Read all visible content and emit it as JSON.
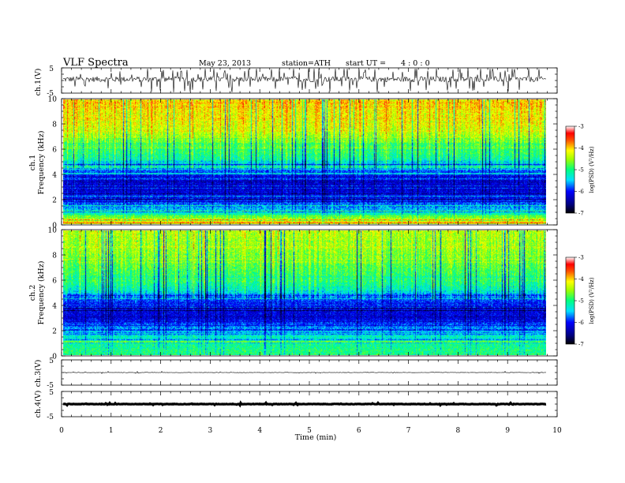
{
  "header": {
    "title": "VLF  Spectra",
    "date": "May 23, 2013",
    "station": "station=ATH",
    "start_prefix": "start  UT  =",
    "start_time": "4  : 0  : 0"
  },
  "axes": {
    "ch1_wave_label": "ch.1(V)",
    "ch1_spec_label": "ch.1\nFrequency  (kHz)",
    "ch2_spec_label": "ch.2\nFrequency  (kHz)",
    "ch3_wave_label": "ch.3(V)",
    "ch4_wave_label": "ch.4(V)",
    "time_label": "Time  (min)",
    "colorbar_label": "log(PSD) (V²/Hz)"
  },
  "chart_data": [
    {
      "type": "line",
      "panel": "ch.1 waveform",
      "ylabel": "ch.1(V)",
      "ylim": [
        -5,
        5
      ],
      "yticks": [
        "5",
        "-5"
      ],
      "xlim": [
        0,
        10
      ],
      "description_values": {
        "baseline_V": 0.5,
        "spike_amplitude_V": 3.5
      }
    },
    {
      "type": "heatmap",
      "panel": "ch.1 spectrogram",
      "ylabel": "Frequency (kHz)",
      "ylim": [
        0,
        10
      ],
      "yticks": [
        "0",
        "2",
        "4",
        "6",
        "8",
        "10"
      ],
      "xlim": [
        0,
        9.8
      ],
      "color_scale": {
        "label": "log(PSD) (V²/Hz)",
        "min": -7,
        "max": -3,
        "ticks": [
          "-3",
          "-4",
          "-5",
          "-6",
          "-7"
        ]
      },
      "log_psd_profile": [
        {
          "freq_khz": 0.2,
          "value": -4.0
        },
        {
          "freq_khz": 1.0,
          "value": -5.4
        },
        {
          "freq_khz": 2.0,
          "value": -6.0
        },
        {
          "freq_khz": 3.0,
          "value": -6.3
        },
        {
          "freq_khz": 4.0,
          "value": -6.0
        },
        {
          "freq_khz": 4.6,
          "value": -5.6
        },
        {
          "freq_khz": 5.5,
          "value": -5.0
        },
        {
          "freq_khz": 6.5,
          "value": -4.7
        },
        {
          "freq_khz": 8.0,
          "value": -4.2
        },
        {
          "freq_khz": 10.0,
          "value": -4.0
        }
      ]
    },
    {
      "type": "heatmap",
      "panel": "ch.2 spectrogram",
      "ylabel": "Frequency (kHz)",
      "ylim": [
        0,
        10
      ],
      "yticks": [
        "0",
        "2",
        "4",
        "6",
        "8",
        "10"
      ],
      "xlim": [
        0,
        9.8
      ],
      "color_scale": {
        "label": "log(PSD) (V²/Hz)",
        "min": -7,
        "max": -3,
        "ticks": [
          "-3",
          "-4",
          "-5",
          "-6",
          "-7"
        ]
      },
      "log_psd_profile": [
        {
          "freq_khz": 0.2,
          "value": -5.0
        },
        {
          "freq_khz": 1.0,
          "value": -5.1
        },
        {
          "freq_khz": 2.0,
          "value": -5.5
        },
        {
          "freq_khz": 3.0,
          "value": -6.2
        },
        {
          "freq_khz": 4.0,
          "value": -6.1
        },
        {
          "freq_khz": 4.6,
          "value": -5.8
        },
        {
          "freq_khz": 5.5,
          "value": -5.1
        },
        {
          "freq_khz": 6.5,
          "value": -4.9
        },
        {
          "freq_khz": 8.0,
          "value": -4.6
        },
        {
          "freq_khz": 10.0,
          "value": -4.4
        }
      ]
    },
    {
      "type": "line",
      "panel": "ch.3 waveform",
      "ylabel": "ch.3(V)",
      "ylim": [
        -5,
        5
      ],
      "yticks": [
        "5",
        "-5"
      ],
      "xlim": [
        0,
        10
      ],
      "description_values": {
        "baseline_V": 0.0,
        "spike_amplitude_V": 0.3
      }
    },
    {
      "type": "line",
      "panel": "ch.4 waveform",
      "ylabel": "ch.4(V)",
      "ylim": [
        -5,
        5
      ],
      "yticks": [
        "5",
        "-5"
      ],
      "xlim": [
        0,
        10
      ],
      "description_values": {
        "baseline_V": 0.0,
        "spike_amplitude_V": 0.3
      }
    },
    {
      "type": "axis",
      "panel": "shared time axis",
      "xlabel": "Time  (min)",
      "xlim": [
        0,
        10
      ],
      "xticks": [
        "0",
        "1",
        "2",
        "3",
        "4",
        "5",
        "6",
        "7",
        "8",
        "9",
        "10"
      ]
    }
  ]
}
